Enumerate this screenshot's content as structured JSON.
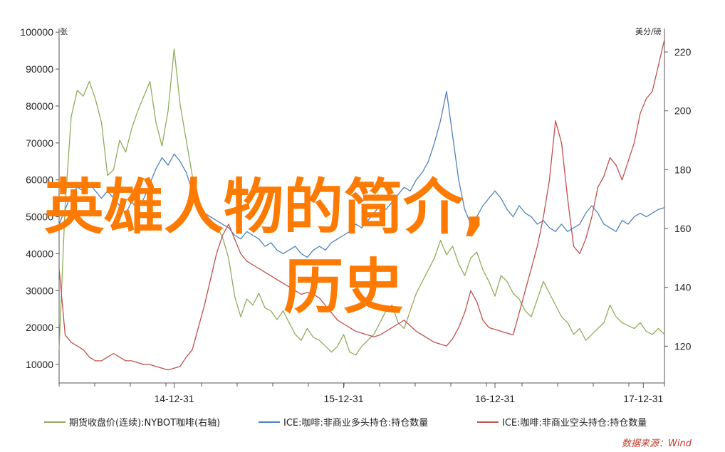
{
  "chart_data": {
    "type": "line",
    "left_axis_unit": "张",
    "right_axis_unit": "美分/磅",
    "left_ticks": [
      10000,
      20000,
      30000,
      40000,
      50000,
      60000,
      70000,
      80000,
      90000,
      100000
    ],
    "left_tick_labels": [
      "10000",
      "20000",
      "30000",
      "40000",
      "50000",
      "60000",
      "70000",
      "80000",
      "90000",
      "100000"
    ],
    "right_ticks": [
      120,
      140,
      160,
      180,
      200,
      220
    ],
    "right_tick_labels": [
      "120",
      "140",
      "160",
      "180",
      "200",
      "220"
    ],
    "ylim_left": [
      5000,
      101000
    ],
    "ylim_right": [
      107.5,
      228
    ],
    "xlim": [
      0,
      100
    ],
    "x_ticks": [
      19,
      47,
      72,
      96.5
    ],
    "x_tick_labels": [
      "14-12-31",
      "15-12-31",
      "16-12-31",
      "17-12-31"
    ],
    "grid": false,
    "legend_position": "bottom",
    "series": [
      {
        "name": "期货收盘价(连续):NYBOT咖啡(右轴)",
        "axis": "right",
        "color": "#8fac5a",
        "x": [
          0,
          1,
          2,
          3,
          4,
          5,
          6,
          7,
          8,
          9,
          10,
          11,
          12,
          13,
          14,
          15,
          16,
          17,
          18,
          19,
          20,
          21,
          22,
          23,
          24,
          25,
          26,
          27,
          28,
          29,
          30,
          31,
          32,
          33,
          34,
          35,
          36,
          37,
          38,
          39,
          40,
          41,
          42,
          43,
          44,
          45,
          46,
          47,
          48,
          49,
          50,
          51,
          52,
          53,
          54,
          55,
          56,
          57,
          58,
          59,
          60,
          61,
          62,
          63,
          64,
          65,
          66,
          67,
          68,
          69,
          70,
          71,
          72,
          73,
          74,
          75,
          76,
          77,
          78,
          79,
          80,
          81,
          82,
          83,
          84,
          85,
          86,
          87,
          88,
          89,
          90,
          91,
          92,
          93,
          94,
          95,
          96,
          97,
          98,
          99,
          100
        ],
        "values": [
          119,
          168,
          198,
          207,
          205,
          210,
          204,
          196,
          178,
          180,
          190,
          186,
          194,
          200,
          205,
          210,
          196,
          188,
          200,
          221,
          202,
          190,
          178,
          170,
          164,
          160,
          161,
          157,
          150,
          137,
          130,
          136,
          134,
          138,
          133,
          132,
          129,
          132,
          128,
          124,
          122,
          126,
          123,
          122,
          120,
          118,
          120,
          124,
          118,
          117,
          120,
          122,
          124,
          128,
          132,
          134,
          128,
          126,
          132,
          138,
          142,
          146,
          150,
          156,
          151,
          154,
          148,
          144,
          150,
          152,
          146,
          142,
          137,
          144,
          142,
          138,
          136,
          132,
          130,
          136,
          142,
          138,
          134,
          130,
          128,
          124,
          126,
          122,
          124,
          126,
          128,
          134,
          130,
          128,
          127,
          126,
          128,
          125,
          124,
          126,
          124
        ]
      },
      {
        "name": "ICE:咖啡:非商业多头持仓:持仓数量",
        "axis": "left",
        "color": "#4f81bd",
        "x": [
          0,
          1,
          2,
          3,
          4,
          5,
          6,
          7,
          8,
          9,
          10,
          11,
          12,
          13,
          14,
          15,
          16,
          17,
          18,
          19,
          20,
          21,
          22,
          23,
          24,
          25,
          26,
          27,
          28,
          29,
          30,
          31,
          32,
          33,
          34,
          35,
          36,
          37,
          38,
          39,
          40,
          41,
          42,
          43,
          44,
          45,
          46,
          47,
          48,
          49,
          50,
          51,
          52,
          53,
          54,
          55,
          56,
          57,
          58,
          59,
          60,
          61,
          62,
          63,
          64,
          65,
          66,
          67,
          68,
          69,
          70,
          71,
          72,
          73,
          74,
          75,
          76,
          77,
          78,
          79,
          80,
          81,
          82,
          83,
          84,
          85,
          86,
          87,
          88,
          89,
          90,
          91,
          92,
          93,
          94,
          95,
          96,
          97,
          98,
          99,
          100
        ],
        "values": [
          48000,
          52000,
          56000,
          58000,
          57000,
          59000,
          57000,
          55000,
          57000,
          55000,
          53000,
          51000,
          54000,
          52000,
          55000,
          59000,
          63000,
          66000,
          64000,
          67000,
          65000,
          62000,
          57000,
          53000,
          51000,
          50000,
          49000,
          48000,
          47000,
          45000,
          44000,
          46000,
          45000,
          44000,
          42000,
          43000,
          41000,
          40000,
          41000,
          42000,
          40000,
          39000,
          41000,
          42000,
          41000,
          43000,
          44000,
          45000,
          46000,
          48000,
          47000,
          49000,
          51000,
          53000,
          52000,
          54000,
          56000,
          58000,
          57000,
          60000,
          62000,
          65000,
          70000,
          76000,
          84000,
          72000,
          60000,
          52000,
          48000,
          50000,
          53000,
          55000,
          57000,
          55000,
          52000,
          50000,
          53000,
          51000,
          50000,
          48000,
          49000,
          47000,
          46000,
          48000,
          46000,
          47000,
          48000,
          51000,
          53000,
          51000,
          48000,
          47000,
          46000,
          49000,
          48000,
          50000,
          51000,
          50000,
          51000,
          52000,
          52500
        ]
      },
      {
        "name": "ICE:咖啡:非商业空头持仓:持仓数量",
        "axis": "left",
        "color": "#c0504d",
        "x": [
          0,
          1,
          2,
          3,
          4,
          5,
          6,
          7,
          8,
          9,
          10,
          11,
          12,
          13,
          14,
          15,
          16,
          17,
          18,
          19,
          20,
          21,
          22,
          23,
          24,
          25,
          26,
          27,
          28,
          29,
          30,
          31,
          32,
          33,
          34,
          35,
          36,
          37,
          38,
          39,
          40,
          41,
          42,
          43,
          44,
          45,
          46,
          47,
          48,
          49,
          50,
          51,
          52,
          53,
          54,
          55,
          56,
          57,
          58,
          59,
          60,
          61,
          62,
          63,
          64,
          65,
          66,
          67,
          68,
          69,
          70,
          71,
          72,
          73,
          74,
          75,
          76,
          77,
          78,
          79,
          80,
          81,
          82,
          83,
          84,
          85,
          86,
          87,
          88,
          89,
          90,
          91,
          92,
          93,
          94,
          95,
          96,
          97,
          98,
          99,
          100
        ],
        "values": [
          36000,
          18000,
          16000,
          15000,
          14000,
          12000,
          11000,
          11000,
          12000,
          13000,
          12000,
          11000,
          11000,
          10500,
          10000,
          10000,
          9500,
          9000,
          8500,
          9000,
          9500,
          12000,
          14000,
          20000,
          26000,
          33000,
          40000,
          45000,
          48000,
          44000,
          40000,
          38000,
          37000,
          36000,
          35000,
          34000,
          33000,
          32000,
          31000,
          30000,
          29000,
          29500,
          29000,
          28000,
          26000,
          24000,
          22000,
          21000,
          20000,
          19000,
          18500,
          18000,
          17500,
          18000,
          19000,
          20000,
          21000,
          22000,
          20500,
          19000,
          18000,
          17000,
          16000,
          15500,
          15000,
          17000,
          20000,
          24000,
          30000,
          27000,
          22000,
          20000,
          19500,
          19000,
          18500,
          18000,
          24000,
          30000,
          36000,
          42000,
          50000,
          60000,
          76000,
          70000,
          55000,
          42000,
          40000,
          44000,
          50000,
          58000,
          61000,
          66000,
          64000,
          60000,
          65000,
          70000,
          78000,
          82000,
          84000,
          91000,
          98000
        ]
      }
    ]
  },
  "overlay": {
    "line1": "英雄人物的简介,",
    "line2": "历史",
    "color": "#ff7a00"
  },
  "source": "数据来源：Wind"
}
